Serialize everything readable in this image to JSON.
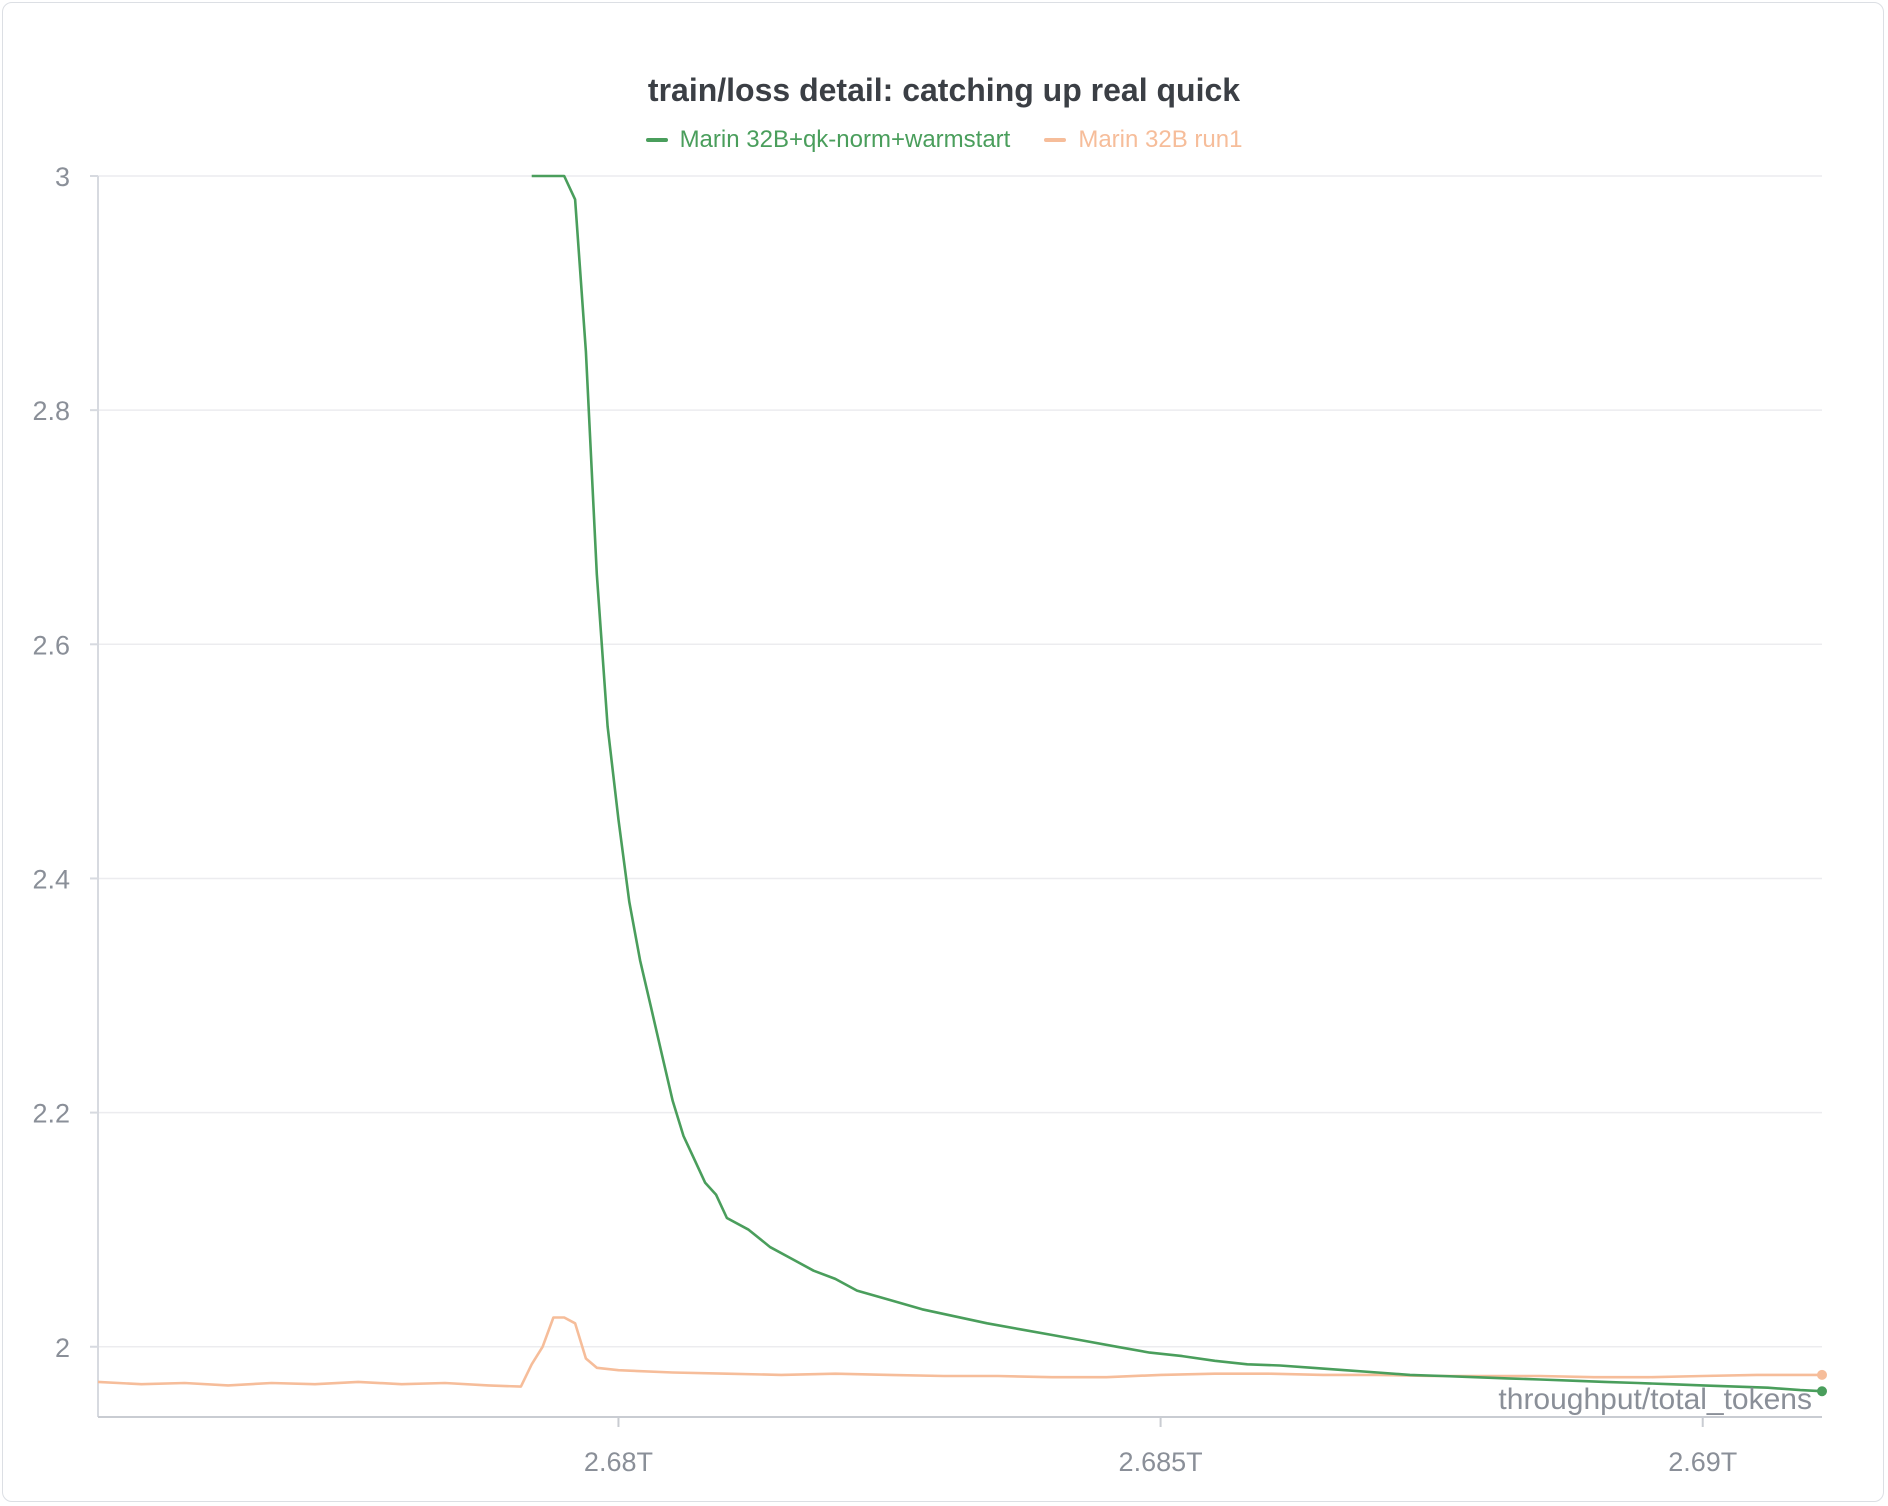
{
  "chart_data": {
    "type": "line",
    "title": "train/loss detail: catching up real quick",
    "xlabel": "throughput/total_tokens",
    "ylabel": "",
    "xlim": [
      2.6752,
      2.6911
    ],
    "ylim": [
      1.94,
      3.0
    ],
    "x_unit": "T",
    "yticks": [
      {
        "value": 3.0,
        "label": "3"
      },
      {
        "value": 2.8,
        "label": "2.8"
      },
      {
        "value": 2.6,
        "label": "2.6"
      },
      {
        "value": 2.4,
        "label": "2.4"
      },
      {
        "value": 2.2,
        "label": "2.2"
      },
      {
        "value": 2.0,
        "label": "2"
      }
    ],
    "xticks": [
      {
        "value": 2.68,
        "label": "2.68T"
      },
      {
        "value": 2.685,
        "label": "2.685T"
      },
      {
        "value": 2.69,
        "label": "2.69T"
      }
    ],
    "grid": true,
    "legend_position": "top-center",
    "series": [
      {
        "name": "Marin 32B+qk-norm+warmstart",
        "color": "#4a9e5c",
        "points": [
          [
            2.6792,
            3.0
          ],
          [
            2.6794,
            3.0
          ],
          [
            2.6795,
            3.0
          ],
          [
            2.6796,
            2.98
          ],
          [
            2.6797,
            2.85
          ],
          [
            2.6798,
            2.66
          ],
          [
            2.6799,
            2.53
          ],
          [
            2.68,
            2.45
          ],
          [
            2.6801,
            2.38
          ],
          [
            2.6802,
            2.33
          ],
          [
            2.6803,
            2.29
          ],
          [
            2.6804,
            2.25
          ],
          [
            2.6805,
            2.21
          ],
          [
            2.6806,
            2.18
          ],
          [
            2.6807,
            2.16
          ],
          [
            2.6808,
            2.14
          ],
          [
            2.6809,
            2.13
          ],
          [
            2.681,
            2.11
          ],
          [
            2.6812,
            2.1
          ],
          [
            2.6814,
            2.085
          ],
          [
            2.6816,
            2.075
          ],
          [
            2.6818,
            2.065
          ],
          [
            2.682,
            2.058
          ],
          [
            2.6822,
            2.048
          ],
          [
            2.6825,
            2.04
          ],
          [
            2.6828,
            2.032
          ],
          [
            2.6831,
            2.026
          ],
          [
            2.6834,
            2.02
          ],
          [
            2.6837,
            2.015
          ],
          [
            2.684,
            2.01
          ],
          [
            2.6843,
            2.005
          ],
          [
            2.6846,
            2.0
          ],
          [
            2.6849,
            1.995
          ],
          [
            2.6852,
            1.992
          ],
          [
            2.6855,
            1.988
          ],
          [
            2.6858,
            1.985
          ],
          [
            2.6861,
            1.984
          ],
          [
            2.6864,
            1.982
          ],
          [
            2.6867,
            1.98
          ],
          [
            2.687,
            1.978
          ],
          [
            2.6873,
            1.976
          ],
          [
            2.6876,
            1.975
          ],
          [
            2.6879,
            1.974
          ],
          [
            2.6882,
            1.973
          ],
          [
            2.6885,
            1.972
          ],
          [
            2.6888,
            1.971
          ],
          [
            2.6891,
            1.97
          ],
          [
            2.6894,
            1.969
          ],
          [
            2.6897,
            1.968
          ],
          [
            2.69,
            1.967
          ],
          [
            2.6903,
            1.966
          ],
          [
            2.6906,
            1.965
          ],
          [
            2.6909,
            1.963
          ],
          [
            2.6911,
            1.962
          ]
        ]
      },
      {
        "name": "Marin 32B run1",
        "color": "#f6bd9a",
        "points": [
          [
            2.6752,
            1.97
          ],
          [
            2.6756,
            1.968
          ],
          [
            2.676,
            1.969
          ],
          [
            2.6764,
            1.967
          ],
          [
            2.6768,
            1.969
          ],
          [
            2.6772,
            1.968
          ],
          [
            2.6776,
            1.97
          ],
          [
            2.678,
            1.968
          ],
          [
            2.6784,
            1.969
          ],
          [
            2.6788,
            1.967
          ],
          [
            2.6791,
            1.966
          ],
          [
            2.6792,
            1.985
          ],
          [
            2.6793,
            2.0
          ],
          [
            2.6794,
            2.025
          ],
          [
            2.6795,
            2.025
          ],
          [
            2.6796,
            2.02
          ],
          [
            2.6797,
            1.99
          ],
          [
            2.6798,
            1.982
          ],
          [
            2.68,
            1.98
          ],
          [
            2.6805,
            1.978
          ],
          [
            2.681,
            1.977
          ],
          [
            2.6815,
            1.976
          ],
          [
            2.682,
            1.977
          ],
          [
            2.6825,
            1.976
          ],
          [
            2.683,
            1.975
          ],
          [
            2.6835,
            1.975
          ],
          [
            2.684,
            1.974
          ],
          [
            2.6845,
            1.974
          ],
          [
            2.685,
            1.976
          ],
          [
            2.6855,
            1.977
          ],
          [
            2.686,
            1.977
          ],
          [
            2.6865,
            1.976
          ],
          [
            2.687,
            1.976
          ],
          [
            2.6875,
            1.975
          ],
          [
            2.688,
            1.975
          ],
          [
            2.6885,
            1.975
          ],
          [
            2.689,
            1.974
          ],
          [
            2.6895,
            1.974
          ],
          [
            2.69,
            1.975
          ],
          [
            2.6905,
            1.976
          ],
          [
            2.6911,
            1.976
          ]
        ]
      }
    ]
  }
}
